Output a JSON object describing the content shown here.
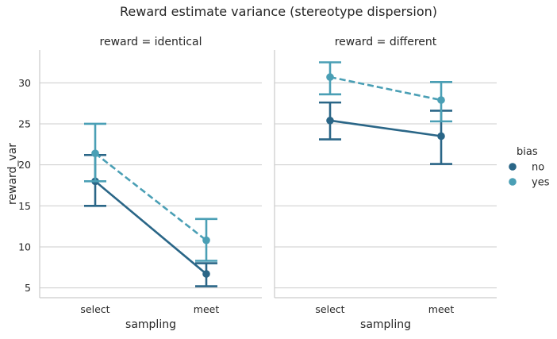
{
  "chart_data": {
    "type": "line",
    "title": "Reward estimate variance (stereotype dispersion)",
    "ylabel": "reward_var",
    "xlabel": "sampling",
    "categories": [
      "select",
      "meet"
    ],
    "ylim": [
      3.8,
      34.0
    ],
    "yticks": [
      5,
      10,
      15,
      20,
      25,
      30
    ],
    "grid": "horizontal",
    "legend": {
      "title": "bias",
      "position": "right",
      "entries": [
        {
          "label": "no",
          "color": "#2a6687"
        },
        {
          "label": "yes",
          "color": "#4a9fb5"
        }
      ]
    },
    "panels": [
      {
        "title": "reward = identical",
        "series": [
          {
            "name": "no",
            "color": "#2a6687",
            "dash": false,
            "values": [
              18.0,
              6.7
            ],
            "ci_low": [
              15.0,
              5.2
            ],
            "ci_high": [
              21.2,
              8.0
            ]
          },
          {
            "name": "yes",
            "color": "#4a9fb5",
            "dash": true,
            "values": [
              21.4,
              10.8
            ],
            "ci_low": [
              18.0,
              8.3
            ],
            "ci_high": [
              25.0,
              13.4
            ]
          }
        ]
      },
      {
        "title": "reward = different",
        "series": [
          {
            "name": "no",
            "color": "#2a6687",
            "dash": false,
            "values": [
              25.4,
              23.5
            ],
            "ci_low": [
              23.1,
              20.1
            ],
            "ci_high": [
              27.6,
              26.6
            ]
          },
          {
            "name": "yes",
            "color": "#4a9fb5",
            "dash": true,
            "values": [
              30.7,
              27.9
            ],
            "ci_low": [
              28.6,
              25.3
            ],
            "ci_high": [
              32.5,
              30.1
            ]
          }
        ]
      }
    ]
  }
}
